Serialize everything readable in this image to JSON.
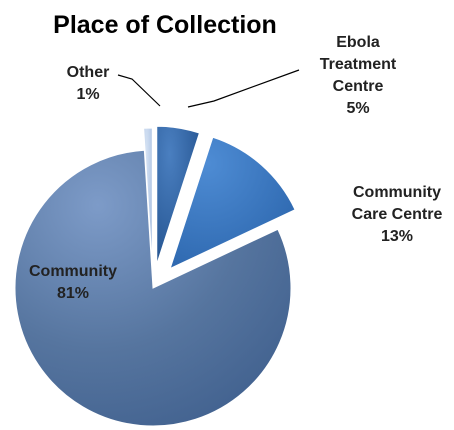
{
  "chart_data": {
    "type": "pie",
    "title": "Place of Collection",
    "exploded": true,
    "categories": [
      "Ebola Treatment Centre",
      "Community Care Centre",
      "Community",
      "Other"
    ],
    "values": [
      5,
      13,
      81,
      1
    ],
    "labels": [
      {
        "lines": [
          "Ebola",
          "Treatment",
          "Centre"
        ],
        "pct": "5%"
      },
      {
        "lines": [
          "Community",
          "Care Centre"
        ],
        "pct": "13%"
      },
      {
        "lines": [
          "Community"
        ],
        "pct": "81%"
      },
      {
        "lines": [
          "Other"
        ],
        "pct": "1%"
      }
    ],
    "colors": [
      "#2f5f9b",
      "#3a76c0",
      "#4f6f9e",
      "#b8cce8"
    ],
    "legend": "none"
  }
}
